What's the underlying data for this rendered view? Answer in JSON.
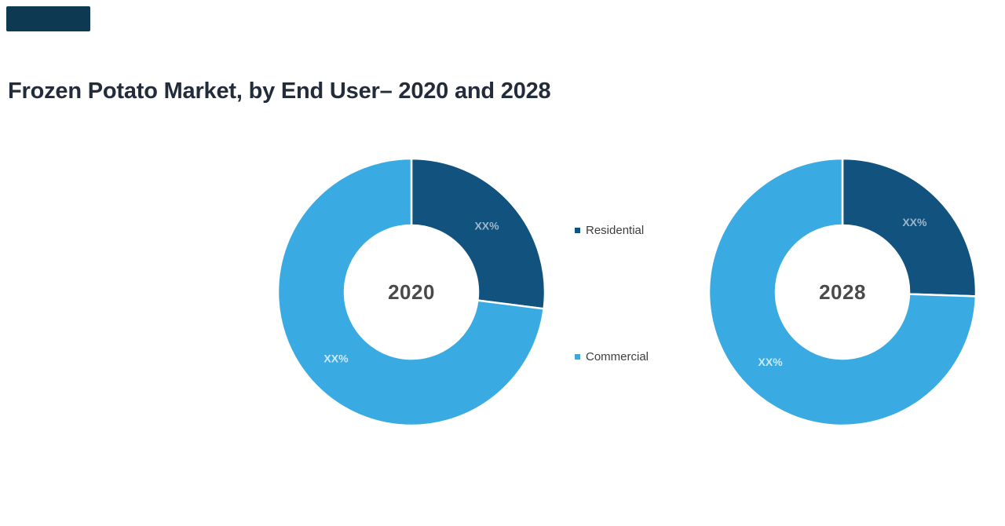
{
  "page": {
    "background": "#ffffff"
  },
  "decor": {
    "corner_block_color": "#0d3a52"
  },
  "header": {
    "title": "Frozen Potato Market, by End User– 2020 and 2028",
    "title_color": "#232c3b"
  },
  "legend": {
    "position": "between-charts",
    "text_color": "#3d3d3d",
    "items": [
      {
        "label": "Residential",
        "color": "#12527e"
      },
      {
        "label": "Commercial",
        "color": "#3aabe2"
      }
    ]
  },
  "chart_data": [
    {
      "type": "pie",
      "donut": true,
      "title": "2020",
      "center_label": "2020",
      "center_label_color": "#4a4a4a",
      "categories": [
        "Residential",
        "Commercial"
      ],
      "values_shown": [
        "XX%",
        "XX%"
      ],
      "values_pct_estimate": [
        27,
        73
      ],
      "colors": [
        "#12527e",
        "#3aabe2"
      ],
      "label_colors": [
        "#9db6ca",
        "#cbe9f8"
      ],
      "start_angle_deg": 0,
      "direction": "clockwise",
      "grid": false
    },
    {
      "type": "pie",
      "donut": true,
      "title": "2028",
      "center_label": "2028",
      "center_label_color": "#4a4a4a",
      "categories": [
        "Residential",
        "Commercial"
      ],
      "values_shown": [
        "XX%",
        "XX%"
      ],
      "values_pct_estimate": [
        25.5,
        74.5
      ],
      "colors": [
        "#12527e",
        "#3aabe2"
      ],
      "label_colors": [
        "#9db6ca",
        "#cbe9f8"
      ],
      "start_angle_deg": 0,
      "direction": "clockwise",
      "grid": false
    }
  ]
}
